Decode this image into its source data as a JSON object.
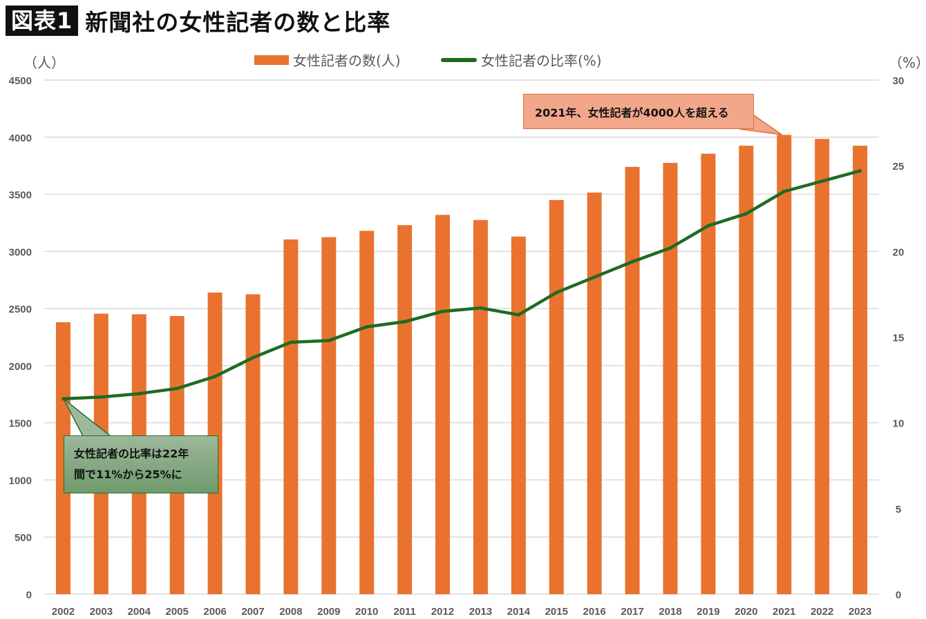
{
  "title": {
    "badge": "図表1",
    "text": "新聞社の女性記者の数と比率"
  },
  "units": {
    "left": "（人）",
    "right": "（%）"
  },
  "legend": {
    "bar_label": "女性記者の数(人)",
    "line_label": "女性記者の比率(%)"
  },
  "annotations": {
    "top": "2021年、女性記者が4000人を超える",
    "bottom": "女性記者の比率は22年\n間で11%から25%に"
  },
  "colors": {
    "bar": "#E9722F",
    "line": "#1F6B22",
    "grid": "#D9D9D9",
    "axis_text": "#595959"
  },
  "chart_data": {
    "type": "bar",
    "categories": [
      "2002",
      "2003",
      "2004",
      "2005",
      "2006",
      "2007",
      "2008",
      "2009",
      "2010",
      "2011",
      "2012",
      "2013",
      "2014",
      "2015",
      "2016",
      "2017",
      "2018",
      "2019",
      "2020",
      "2021",
      "2022",
      "2023"
    ],
    "series": [
      {
        "name": "女性記者の数(人)",
        "type": "bar",
        "axis": "left",
        "values": [
          2380,
          2455,
          2450,
          2435,
          2640,
          2625,
          3105,
          3125,
          3180,
          3230,
          3320,
          3275,
          3130,
          3450,
          3515,
          3740,
          3775,
          3855,
          3925,
          4020,
          3985,
          3925
        ]
      },
      {
        "name": "女性記者の比率(%)",
        "type": "line",
        "axis": "right",
        "values": [
          11.4,
          11.5,
          11.7,
          12.0,
          12.7,
          13.8,
          14.7,
          14.8,
          15.6,
          15.9,
          16.5,
          16.7,
          16.3,
          17.6,
          18.5,
          19.4,
          20.2,
          21.5,
          22.2,
          23.5,
          24.1,
          24.7
        ]
      }
    ],
    "y_left": {
      "ylim": [
        0,
        4500
      ],
      "ticks": [
        0,
        500,
        1000,
        1500,
        2000,
        2500,
        3000,
        3500,
        4000,
        4500
      ]
    },
    "y_right": {
      "ylim": [
        0,
        30
      ],
      "ticks": [
        0,
        5,
        10,
        15,
        20,
        25,
        30
      ]
    },
    "grid": true,
    "legend_position": "top"
  }
}
